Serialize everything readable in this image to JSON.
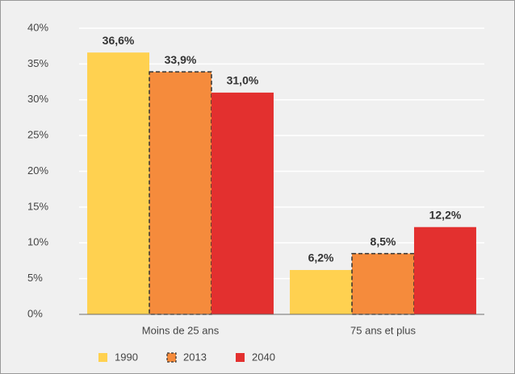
{
  "chart_data": {
    "type": "bar",
    "categories": [
      "Moins de 25 ans",
      "75 ans et plus"
    ],
    "series": [
      {
        "name": "1990",
        "color": "#ffd150",
        "values": [
          36.6,
          6.2
        ],
        "value_labels": [
          "36,6%",
          "6,2%"
        ]
      },
      {
        "name": "2013",
        "color": "#f58b3c",
        "dashed": true,
        "values": [
          33.9,
          8.5
        ],
        "value_labels": [
          "33,9%",
          "8,5%"
        ]
      },
      {
        "name": "2040",
        "color": "#e3302f",
        "values": [
          31.0,
          12.2
        ],
        "value_labels": [
          "31,0%",
          "12,2%"
        ]
      }
    ],
    "ylim": [
      0,
      40
    ],
    "yticks": [
      {
        "value": 0,
        "label": "0%"
      },
      {
        "value": 5,
        "label": "5%"
      },
      {
        "value": 10,
        "label": "10%"
      },
      {
        "value": 15,
        "label": "15%"
      },
      {
        "value": 20,
        "label": "20%"
      },
      {
        "value": 25,
        "label": "25%"
      },
      {
        "value": 30,
        "label": "30%"
      },
      {
        "value": 35,
        "label": "35%"
      },
      {
        "value": 40,
        "label": "40%"
      }
    ],
    "grid": true,
    "legend": "bottom-left"
  }
}
